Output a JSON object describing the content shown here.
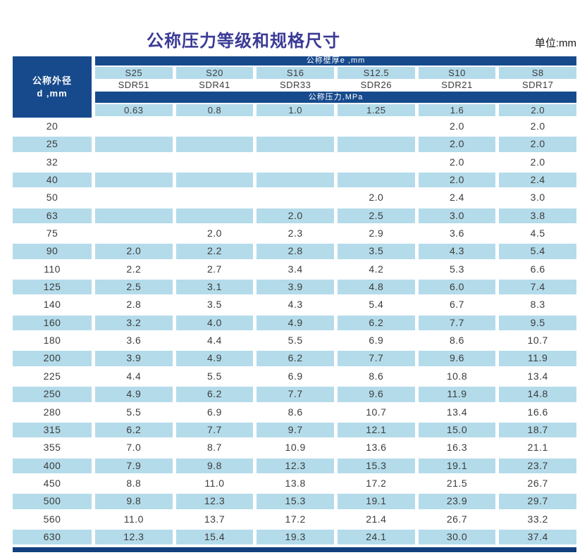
{
  "title": "公称压力等级和规格尺寸",
  "unit_label": "单位:mm",
  "colors": {
    "header_navy": "#174A8C",
    "stripe_blue": "#B4DBEA",
    "title_indigo": "#3A3A96",
    "bottom_bar_navy": "#12407F",
    "text_gray": "#3C3C3C"
  },
  "table": {
    "corner_header": {
      "line1": "公称外径",
      "line2": "d ,mm"
    },
    "wall_thickness_band": "公称壁厚e ,mm",
    "pressure_band": "公称压力,MPa",
    "series_labels": [
      "S25",
      "S20",
      "S16",
      "S12.5",
      "S10",
      "S8"
    ],
    "sdr_labels": [
      "SDR51",
      "SDR41",
      "SDR33",
      "SDR26",
      "SDR21",
      "SDR17"
    ],
    "pressure_values": [
      "0.63",
      "0.8",
      "1.0",
      "1.25",
      "1.6",
      "2.0"
    ],
    "rows": [
      {
        "d": "20",
        "e": [
          "",
          "",
          "",
          "",
          "2.0",
          "2.0"
        ]
      },
      {
        "d": "25",
        "e": [
          "",
          "",
          "",
          "",
          "2.0",
          "2.0"
        ]
      },
      {
        "d": "32",
        "e": [
          "",
          "",
          "",
          "",
          "2.0",
          "2.0"
        ]
      },
      {
        "d": "40",
        "e": [
          "",
          "",
          "",
          "",
          "2.0",
          "2.4"
        ]
      },
      {
        "d": "50",
        "e": [
          "",
          "",
          "",
          "2.0",
          "2.4",
          "3.0"
        ]
      },
      {
        "d": "63",
        "e": [
          "",
          "",
          "2.0",
          "2.5",
          "3.0",
          "3.8"
        ]
      },
      {
        "d": "75",
        "e": [
          "",
          "2.0",
          "2.3",
          "2.9",
          "3.6",
          "4.5"
        ]
      },
      {
        "d": "90",
        "e": [
          "2.0",
          "2.2",
          "2.8",
          "3.5",
          "4.3",
          "5.4"
        ]
      },
      {
        "d": "110",
        "e": [
          "2.2",
          "2.7",
          "3.4",
          "4.2",
          "5.3",
          "6.6"
        ]
      },
      {
        "d": "125",
        "e": [
          "2.5",
          "3.1",
          "3.9",
          "4.8",
          "6.0",
          "7.4"
        ]
      },
      {
        "d": "140",
        "e": [
          "2.8",
          "3.5",
          "4.3",
          "5.4",
          "6.7",
          "8.3"
        ]
      },
      {
        "d": "160",
        "e": [
          "3.2",
          "4.0",
          "4.9",
          "6.2",
          "7.7",
          "9.5"
        ]
      },
      {
        "d": "180",
        "e": [
          "3.6",
          "4.4",
          "5.5",
          "6.9",
          "8.6",
          "10.7"
        ]
      },
      {
        "d": "200",
        "e": [
          "3.9",
          "4.9",
          "6.2",
          "7.7",
          "9.6",
          "11.9"
        ]
      },
      {
        "d": "225",
        "e": [
          "4.4",
          "5.5",
          "6.9",
          "8.6",
          "10.8",
          "13.4"
        ]
      },
      {
        "d": "250",
        "e": [
          "4.9",
          "6.2",
          "7.7",
          "9.6",
          "11.9",
          "14.8"
        ]
      },
      {
        "d": "280",
        "e": [
          "5.5",
          "6.9",
          "8.6",
          "10.7",
          "13.4",
          "16.6"
        ]
      },
      {
        "d": "315",
        "e": [
          "6.2",
          "7.7",
          "9.7",
          "12.1",
          "15.0",
          "18.7"
        ]
      },
      {
        "d": "355",
        "e": [
          "7.0",
          "8.7",
          "10.9",
          "13.6",
          "16.3",
          "21.1"
        ]
      },
      {
        "d": "400",
        "e": [
          "7.9",
          "9.8",
          "12.3",
          "15.3",
          "19.1",
          "23.7"
        ]
      },
      {
        "d": "450",
        "e": [
          "8.8",
          "11.0",
          "13.8",
          "17.2",
          "21.5",
          "26.7"
        ]
      },
      {
        "d": "500",
        "e": [
          "9.8",
          "12.3",
          "15.3",
          "19.1",
          "23.9",
          "29.7"
        ]
      },
      {
        "d": "560",
        "e": [
          "11.0",
          "13.7",
          "17.2",
          "21.4",
          "26.7",
          "33.2"
        ]
      },
      {
        "d": "630",
        "e": [
          "12.3",
          "15.4",
          "19.3",
          "24.1",
          "30.0",
          "37.4"
        ]
      }
    ]
  }
}
